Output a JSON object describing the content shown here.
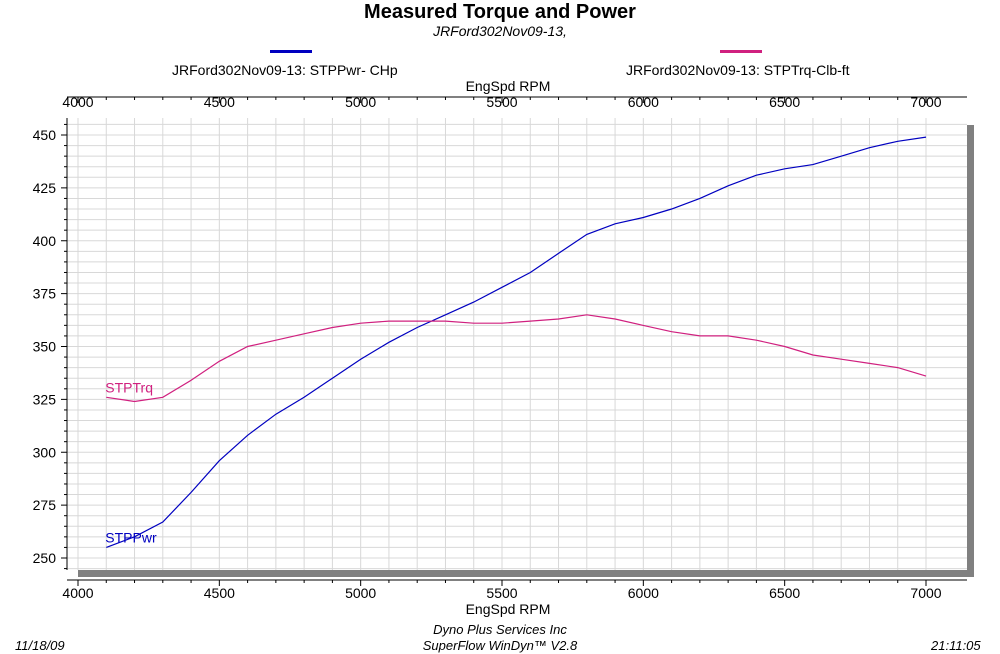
{
  "title": "Measured Torque and Power",
  "subtitle": "JRFord302Nov09-13,",
  "legend": [
    {
      "label": "JRFord302Nov09-13: STPPwr- CHp",
      "color": "#0000c0"
    },
    {
      "label": "JRFord302Nov09-13: STPTrq-Clb-ft",
      "color": "#d0207f"
    }
  ],
  "footer": {
    "date": "11/18/09",
    "company": "Dyno Plus Services Inc",
    "software": "SuperFlow WinDyn™ V2.8",
    "time": "21:11:05"
  },
  "chart_data": {
    "type": "line",
    "title": "Measured Torque and Power",
    "xlabel": "EngSpd  RPM",
    "ylabel": "",
    "xlim": [
      4000,
      7000
    ],
    "ylim": [
      245,
      455
    ],
    "x_ticks": [
      4000,
      4500,
      5000,
      5500,
      6000,
      6500,
      7000
    ],
    "y_ticks": [
      250,
      275,
      300,
      325,
      350,
      375,
      400,
      425,
      450
    ],
    "grid": true,
    "legend_position": "top",
    "x": [
      4100,
      4200,
      4300,
      4400,
      4500,
      4600,
      4700,
      4800,
      4900,
      5000,
      5100,
      5200,
      5300,
      5400,
      5500,
      5600,
      5700,
      5800,
      5900,
      6000,
      6100,
      6200,
      6300,
      6400,
      6500,
      6600,
      6700,
      6800,
      6900,
      7000
    ],
    "series": [
      {
        "name": "STPPwr",
        "color": "#0000c0",
        "values": [
          255,
          260,
          267,
          281,
          296,
          308,
          318,
          326,
          335,
          344,
          352,
          359,
          365,
          371,
          378,
          385,
          394,
          403,
          408,
          411,
          415,
          420,
          426,
          431,
          434,
          436,
          440,
          444,
          447,
          449
        ]
      },
      {
        "name": "STPTrq",
        "color": "#d0207f",
        "values": [
          326,
          324,
          326,
          334,
          343,
          350,
          353,
          356,
          359,
          361,
          362,
          362,
          362,
          361,
          361,
          362,
          363,
          365,
          363,
          360,
          357,
          355,
          355,
          353,
          350,
          346,
          344,
          342,
          340,
          336
        ]
      }
    ]
  }
}
